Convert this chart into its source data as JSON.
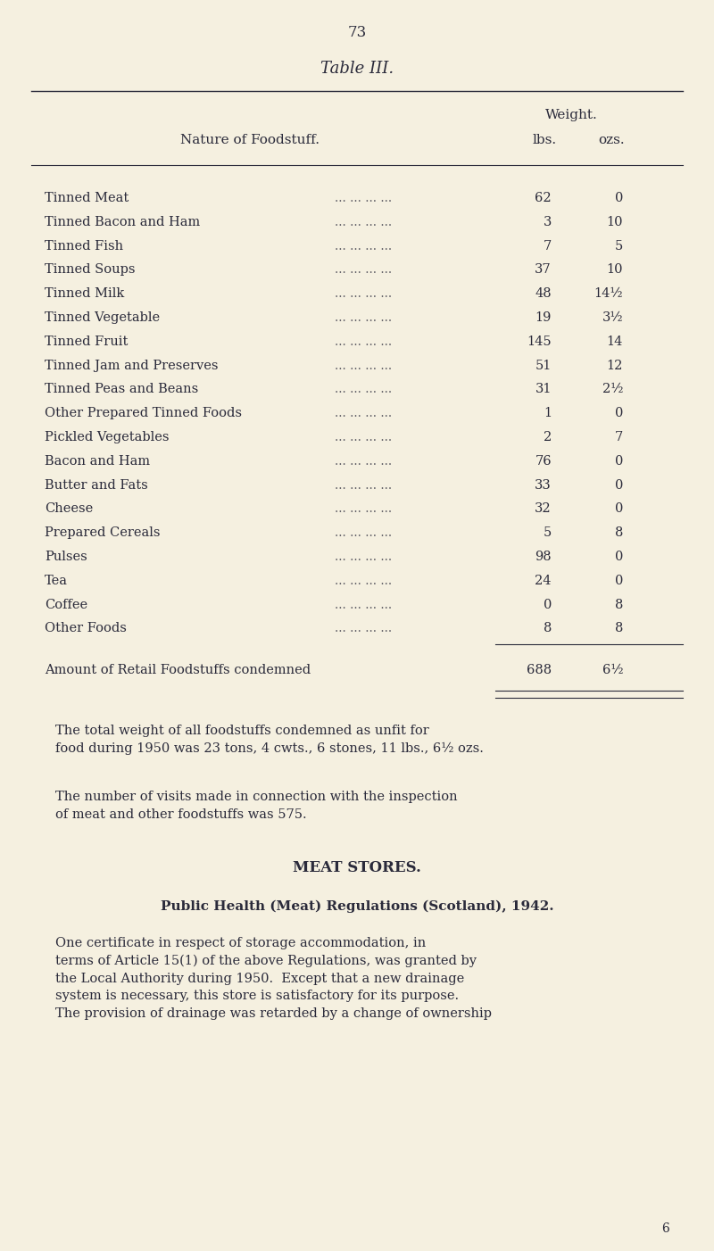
{
  "page_number": "73",
  "title": "Table III.",
  "bg_color": "#f5f0e0",
  "text_color": "#2a2a3a",
  "col_header_line1": "Weight.",
  "col_header_lbs": "lbs.",
  "col_header_ozs": "ozs.",
  "col_header_nature": "Nature of Foodstuff.",
  "rows": [
    {
      "name": "Tinned Meat",
      "lbs": "62",
      "ozs": "0"
    },
    {
      "name": "Tinned Bacon and Ham",
      "lbs": "3",
      "ozs": "10"
    },
    {
      "name": "Tinned Fish",
      "lbs": "7",
      "ozs": "5"
    },
    {
      "name": "Tinned Soups",
      "lbs": "37",
      "ozs": "10"
    },
    {
      "name": "Tinned Milk",
      "lbs": "48",
      "ozs": "14½"
    },
    {
      "name": "Tinned Vegetable",
      "lbs": "19",
      "ozs": "3½"
    },
    {
      "name": "Tinned Fruit",
      "lbs": "145",
      "ozs": "14"
    },
    {
      "name": "Tinned Jam and Preserves",
      "lbs": "51",
      "ozs": "12"
    },
    {
      "name": "Tinned Peas and Beans",
      "lbs": "31",
      "ozs": "2½"
    },
    {
      "name": "Other Prepared Tinned Foods",
      "lbs": "1",
      "ozs": "0"
    },
    {
      "name": "Pickled Vegetables",
      "lbs": "2",
      "ozs": "7"
    },
    {
      "name": "Bacon and Ham",
      "lbs": "76",
      "ozs": "0"
    },
    {
      "name": "Butter and Fats",
      "lbs": "33",
      "ozs": "0"
    },
    {
      "name": "Cheese",
      "lbs": "32",
      "ozs": "0"
    },
    {
      "name": "Prepared Cereals",
      "lbs": "5",
      "ozs": "8"
    },
    {
      "name": "Pulses",
      "lbs": "98",
      "ozs": "0"
    },
    {
      "name": "Tea",
      "lbs": "24",
      "ozs": "0"
    },
    {
      "name": "Coffee",
      "lbs": "0",
      "ozs": "8"
    },
    {
      "name": "Other Foods",
      "lbs": "8",
      "ozs": "8"
    }
  ],
  "total_label": "Amount of Retail Foodstuffs condemned",
  "total_lbs": "688",
  "total_ozs": "6½",
  "para1": "The total weight of all foodstuffs condemned as unfit for\nfood during 1950 was 23 tons, 4 cwts., 6 stones, 11 lbs., 6½ ozs.",
  "para2": "The number of visits made in connection with the inspection\nof meat and other foodstuffs was 575.",
  "section_title": "MEAT STORES.",
  "subsection_title": "Public Health (Meat) Regulations (Scotland), 1942.",
  "body_text": "One certificate in respect of storage accommodation, in\nterms of Article 15(1) of the above Regulations, was granted by\nthe Local Authority during 1950.  Except that a new drainage\nsystem is necessary, this store is satisfactory for its purpose.\nThe provision of drainage was retarded by a change of ownership",
  "footer_number": "6"
}
